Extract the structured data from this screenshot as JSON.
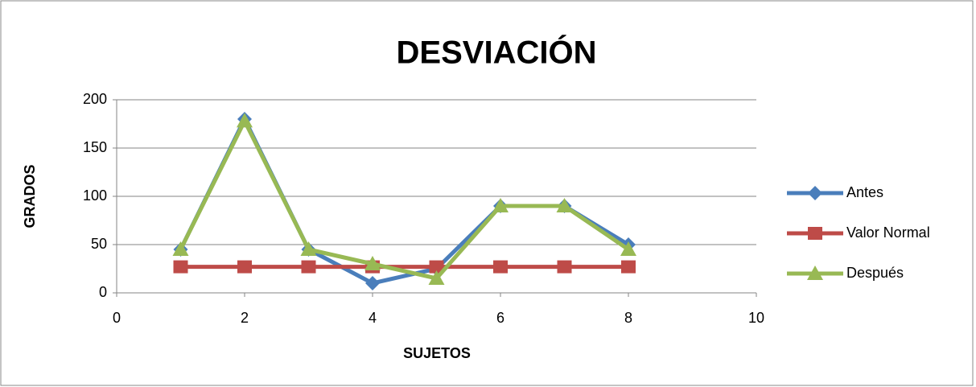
{
  "chart_data": {
    "type": "line",
    "title": "DESVIACIÓN",
    "xlabel": "SUJETOS",
    "ylabel": "GRADOS",
    "x": [
      1,
      2,
      3,
      4,
      5,
      6,
      7,
      8
    ],
    "series": [
      {
        "name": "Antes",
        "color": "#4a7ebb",
        "marker": "diamond",
        "values": [
          45,
          180,
          45,
          10,
          25,
          90,
          90,
          50
        ]
      },
      {
        "name": "Valor Normal",
        "color": "#be4b48",
        "marker": "square",
        "values": [
          27,
          27,
          27,
          27,
          27,
          27,
          27,
          27
        ]
      },
      {
        "name": "Después",
        "color": "#98b954",
        "marker": "triangle",
        "values": [
          45,
          178,
          45,
          30,
          15,
          90,
          90,
          45
        ]
      }
    ],
    "xlim": [
      0,
      10
    ],
    "xticks": [
      0,
      2,
      4,
      6,
      8,
      10
    ],
    "ylim": [
      0,
      200
    ],
    "yticks": [
      0,
      50,
      100,
      150,
      200
    ],
    "grid": true,
    "legend": "right"
  }
}
